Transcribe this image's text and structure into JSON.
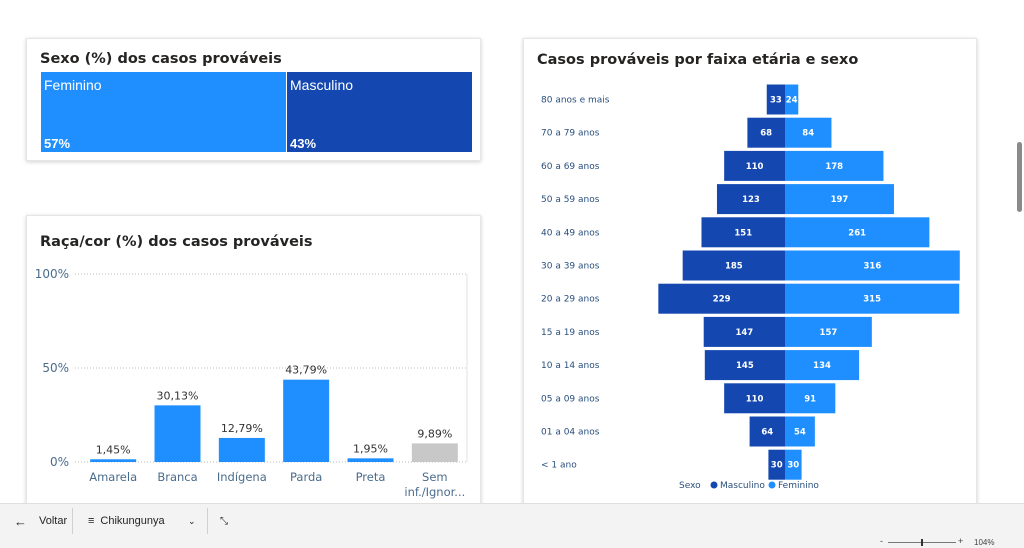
{
  "sex_card": {
    "title": "Sexo (%) dos casos prováveis",
    "tiles": [
      {
        "label": "Feminino",
        "pct": "57%",
        "value": 57,
        "color": "#1F8FFF"
      },
      {
        "label": "Masculino",
        "pct": "43%",
        "value": 43,
        "color": "#1448B0"
      }
    ]
  },
  "race_card": {
    "title": "Raça/cor (%) dos casos prováveis"
  },
  "age_card": {
    "title": "Casos prováveis por faixa etária e sexo"
  },
  "bottom_bar": {
    "back_label": "Voltar",
    "page_label": "Chikungunya"
  },
  "status_bar": {
    "zoom_label": "104%"
  },
  "chart_data": [
    {
      "type": "bar",
      "title": "Raça/cor (%) dos casos prováveis",
      "categories": [
        "Amarela",
        "Branca",
        "Indígena",
        "Parda",
        "Preta",
        "Sem inf./Ignor..."
      ],
      "category_lines": [
        [
          "Amarela"
        ],
        [
          "Branca"
        ],
        [
          "Indígena"
        ],
        [
          "Parda"
        ],
        [
          "Preta"
        ],
        [
          "Sem",
          "inf./Ignor..."
        ]
      ],
      "values": [
        1.45,
        30.13,
        12.79,
        43.79,
        1.95,
        9.89
      ],
      "data_labels": [
        "1,45%",
        "30,13%",
        "12,79%",
        "43,79%",
        "1,95%",
        "9,89%"
      ],
      "colors": [
        "#1F8FFF",
        "#1F8FFF",
        "#1F8FFF",
        "#1F8FFF",
        "#1F8FFF",
        "#C8C8C8"
      ],
      "ylim": [
        0,
        100
      ],
      "yticks": [
        0,
        50,
        100
      ],
      "ytick_labels": [
        "0%",
        "50%",
        "100%"
      ]
    },
    {
      "type": "bar",
      "orientation": "population-pyramid",
      "title": "Casos prováveis por faixa etária e sexo",
      "categories": [
        "80 anos e mais",
        "70 a 79 anos",
        "60 a 69 anos",
        "50 a 59 anos",
        "40 a 49 anos",
        "30 a 39 anos",
        "20 a 29 anos",
        "15 a 19 anos",
        "10 a 14 anos",
        "05 a 09 anos",
        "01 a 04 anos",
        "< 1 ano"
      ],
      "series": [
        {
          "name": "Masculino",
          "color": "#1448B0",
          "values": [
            33,
            68,
            110,
            123,
            151,
            185,
            229,
            147,
            145,
            110,
            64,
            30
          ]
        },
        {
          "name": "Feminino",
          "color": "#1F8FFF",
          "values": [
            24,
            84,
            178,
            197,
            261,
            316,
            315,
            157,
            134,
            91,
            54,
            30
          ]
        }
      ],
      "legend_title": "Sexo",
      "legend_position": "bottom"
    }
  ]
}
